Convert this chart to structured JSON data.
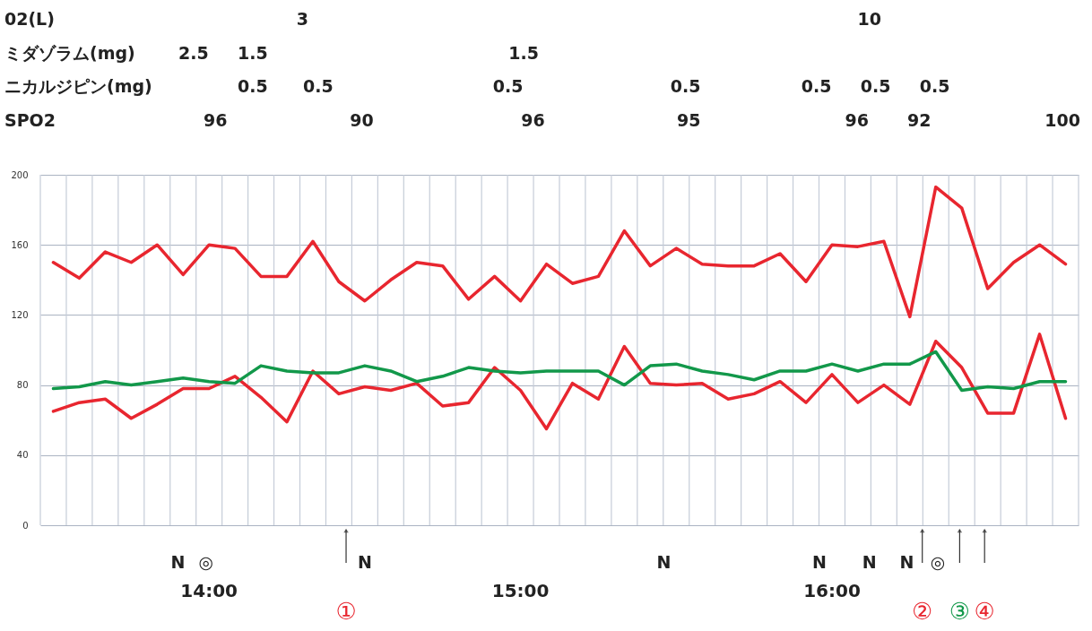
{
  "chart_data": {
    "type": "line",
    "x": [
      13.5,
      13.5833,
      13.6667,
      13.75,
      13.8333,
      13.9167,
      14,
      14.0833,
      14.1667,
      14.25,
      14.3333,
      14.4167,
      14.5,
      14.5833,
      14.6667,
      14.75,
      14.8333,
      14.9167,
      15,
      15.0833,
      15.1667,
      15.25,
      15.3333,
      15.4167,
      15.5,
      15.5833,
      15.6667,
      15.75,
      15.8333,
      15.9167,
      16,
      16.0833,
      16.1667,
      16.25,
      16.3333,
      16.4167,
      16.5,
      16.5833,
      16.6667,
      16.75
    ],
    "series": [
      {
        "color": "#e8262f",
        "values": [
          150,
          141,
          156,
          150,
          160,
          143,
          160,
          158,
          142,
          142,
          162,
          139,
          128,
          140,
          150,
          148,
          129,
          142,
          128,
          149,
          138,
          142,
          168,
          148,
          158,
          149,
          148,
          148,
          155,
          139,
          160,
          159,
          162,
          119,
          193,
          181,
          135,
          150,
          160,
          149
        ]
      },
      {
        "color": "#e8262f",
        "values": [
          65,
          70,
          72,
          61,
          69,
          78,
          78,
          85,
          73,
          59,
          88,
          75,
          79,
          77,
          81,
          68,
          70,
          90,
          77,
          55,
          81,
          72,
          102,
          81,
          80,
          81,
          72,
          75,
          82,
          70,
          86,
          70,
          80,
          69,
          105,
          90,
          64,
          64,
          109,
          61
        ]
      },
      {
        "color": "#12984a",
        "values": [
          78,
          79,
          82,
          80,
          82,
          84,
          82,
          81,
          91,
          88,
          87,
          87,
          91,
          88,
          82,
          85,
          90,
          88,
          87,
          88,
          88,
          88,
          80,
          91,
          92,
          88,
          86,
          83,
          88,
          88,
          92,
          88,
          92,
          92,
          99,
          77,
          79,
          78,
          82,
          82
        ]
      }
    ],
    "xlim": [
      13.4583,
      16.7917
    ],
    "xticks": [
      {
        "value": 13.4583,
        "label": null
      },
      {
        "value": 13.5417,
        "label": null
      },
      {
        "value": 13.625,
        "label": null
      },
      {
        "value": 13.7083,
        "label": null
      },
      {
        "value": 13.7917,
        "label": null
      },
      {
        "value": 13.875,
        "label": null
      },
      {
        "value": 13.9583,
        "label": null
      },
      {
        "value": 14,
        "label": "14:00"
      },
      {
        "value": 14.0417,
        "label": null
      },
      {
        "value": 14.125,
        "label": null
      },
      {
        "value": 14.2083,
        "label": null
      },
      {
        "value": 14.2917,
        "label": null
      },
      {
        "value": 14.375,
        "label": null
      },
      {
        "value": 14.4583,
        "label": null
      },
      {
        "value": 14.5417,
        "label": null
      },
      {
        "value": 14.625,
        "label": null
      },
      {
        "value": 14.7083,
        "label": null
      },
      {
        "value": 14.7917,
        "label": null
      },
      {
        "value": 14.875,
        "label": null
      },
      {
        "value": 14.9583,
        "label": null
      },
      {
        "value": 15,
        "label": "15:00"
      },
      {
        "value": 15.0417,
        "label": null
      },
      {
        "value": 15.125,
        "label": null
      },
      {
        "value": 15.2083,
        "label": null
      },
      {
        "value": 15.2917,
        "label": null
      },
      {
        "value": 15.375,
        "label": null
      },
      {
        "value": 15.4583,
        "label": null
      },
      {
        "value": 15.5417,
        "label": null
      },
      {
        "value": 15.625,
        "label": null
      },
      {
        "value": 15.7083,
        "label": null
      },
      {
        "value": 15.7917,
        "label": null
      },
      {
        "value": 15.875,
        "label": null
      },
      {
        "value": 15.9583,
        "label": null
      },
      {
        "value": 16,
        "label": "16:00"
      },
      {
        "value": 16.0417,
        "label": null
      },
      {
        "value": 16.125,
        "label": null
      },
      {
        "value": 16.2083,
        "label": null
      },
      {
        "value": 16.2917,
        "label": null
      },
      {
        "value": 16.375,
        "label": null
      },
      {
        "value": 16.4583,
        "label": null
      },
      {
        "value": 16.5417,
        "label": null
      },
      {
        "value": 16.625,
        "label": null
      },
      {
        "value": 16.7083,
        "label": null
      },
      {
        "value": 16.7917,
        "label": null
      }
    ],
    "ylim": [
      0,
      200
    ],
    "yticks": [
      0,
      40,
      80,
      120,
      160,
      200
    ],
    "grid": true,
    "annotations": [
      "N",
      "◎",
      "N",
      "N",
      "N",
      "N",
      "N",
      "◎",
      "①",
      "②",
      "③",
      "④",
      "02(L)",
      "3",
      "10",
      "ミダゾラム(mg)",
      "2.5",
      "1.5",
      "1.5",
      "ニカルジピン(mg)",
      "0.5",
      "0.5",
      "0.5",
      "0.5",
      "0.5",
      "0.5",
      "0.5",
      "SPO2",
      "96",
      "90",
      "96",
      "95",
      "96",
      "92",
      "100"
    ]
  }
}
